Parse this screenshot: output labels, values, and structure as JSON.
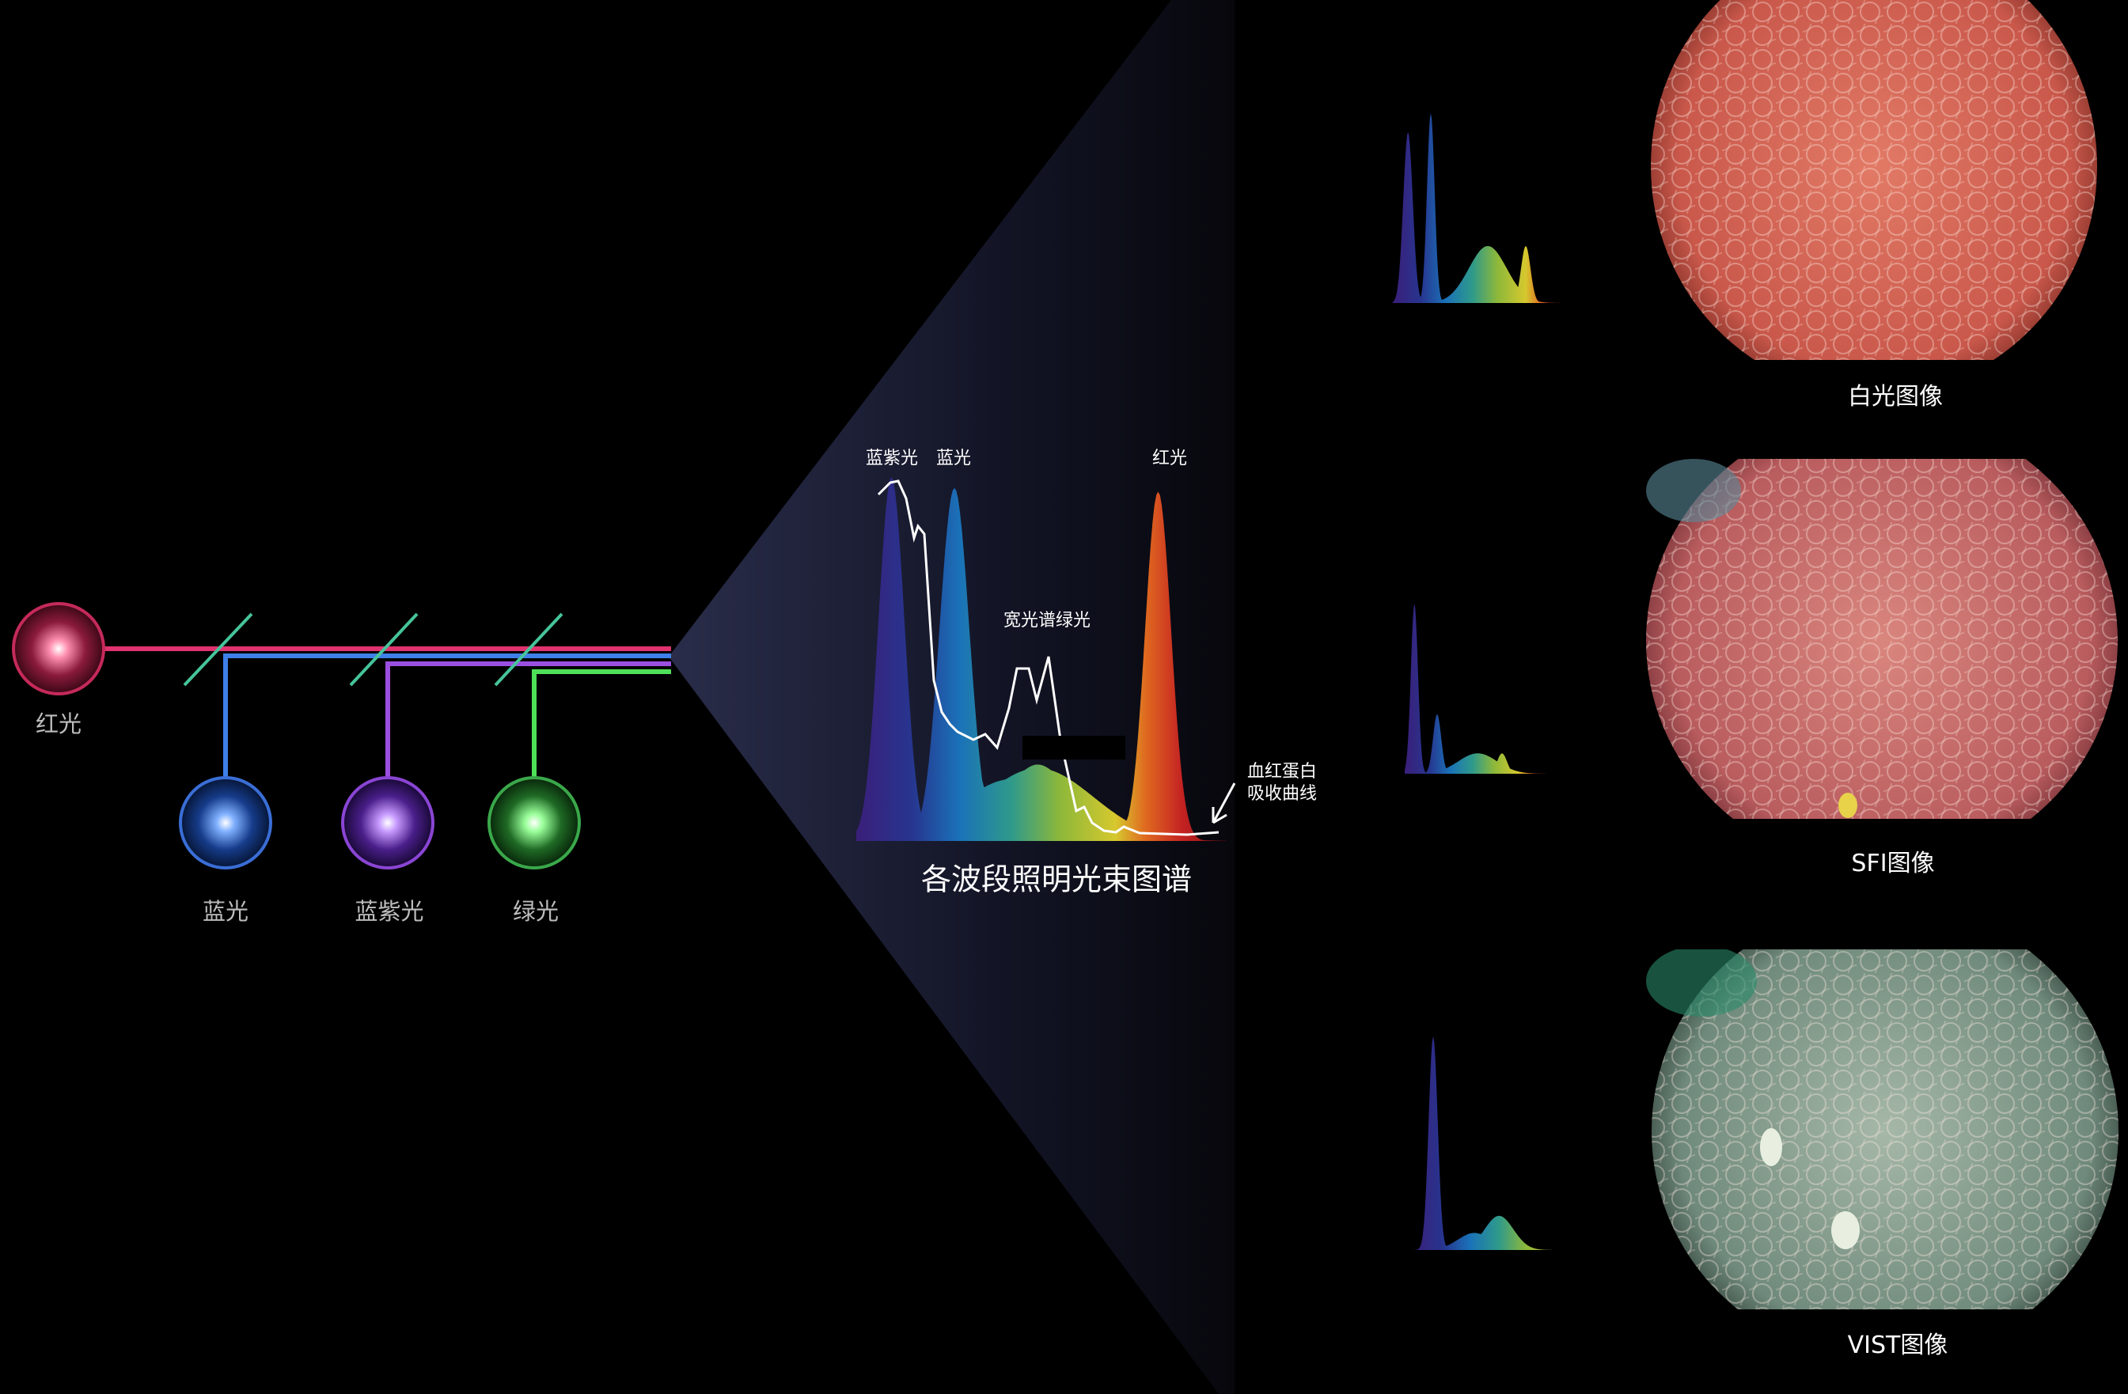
{
  "sources": [
    {
      "label": "红光",
      "color": "#e0336f"
    },
    {
      "label": "蓝光",
      "color": "#3f7fe8"
    },
    {
      "label": "蓝紫光",
      "color": "#9a4fe0"
    },
    {
      "label": "绿光",
      "color": "#4fe05a"
    }
  ],
  "spectrum": {
    "title": "各波段照明光束图谱",
    "labels": {
      "violet": "蓝紫光",
      "blue": "蓝光",
      "red": "红光",
      "green": "宽光谱绿光",
      "hemoglobin_line1": "血红蛋白",
      "hemoglobin_line2": "吸收曲线"
    }
  },
  "modes": [
    {
      "label": "白光图像",
      "tissue_color": "#d9685a"
    },
    {
      "label": "SFI图像",
      "tissue_color": "#c86a6a"
    },
    {
      "label": "VIST图像",
      "tissue_color": "#8fa596"
    }
  ]
}
